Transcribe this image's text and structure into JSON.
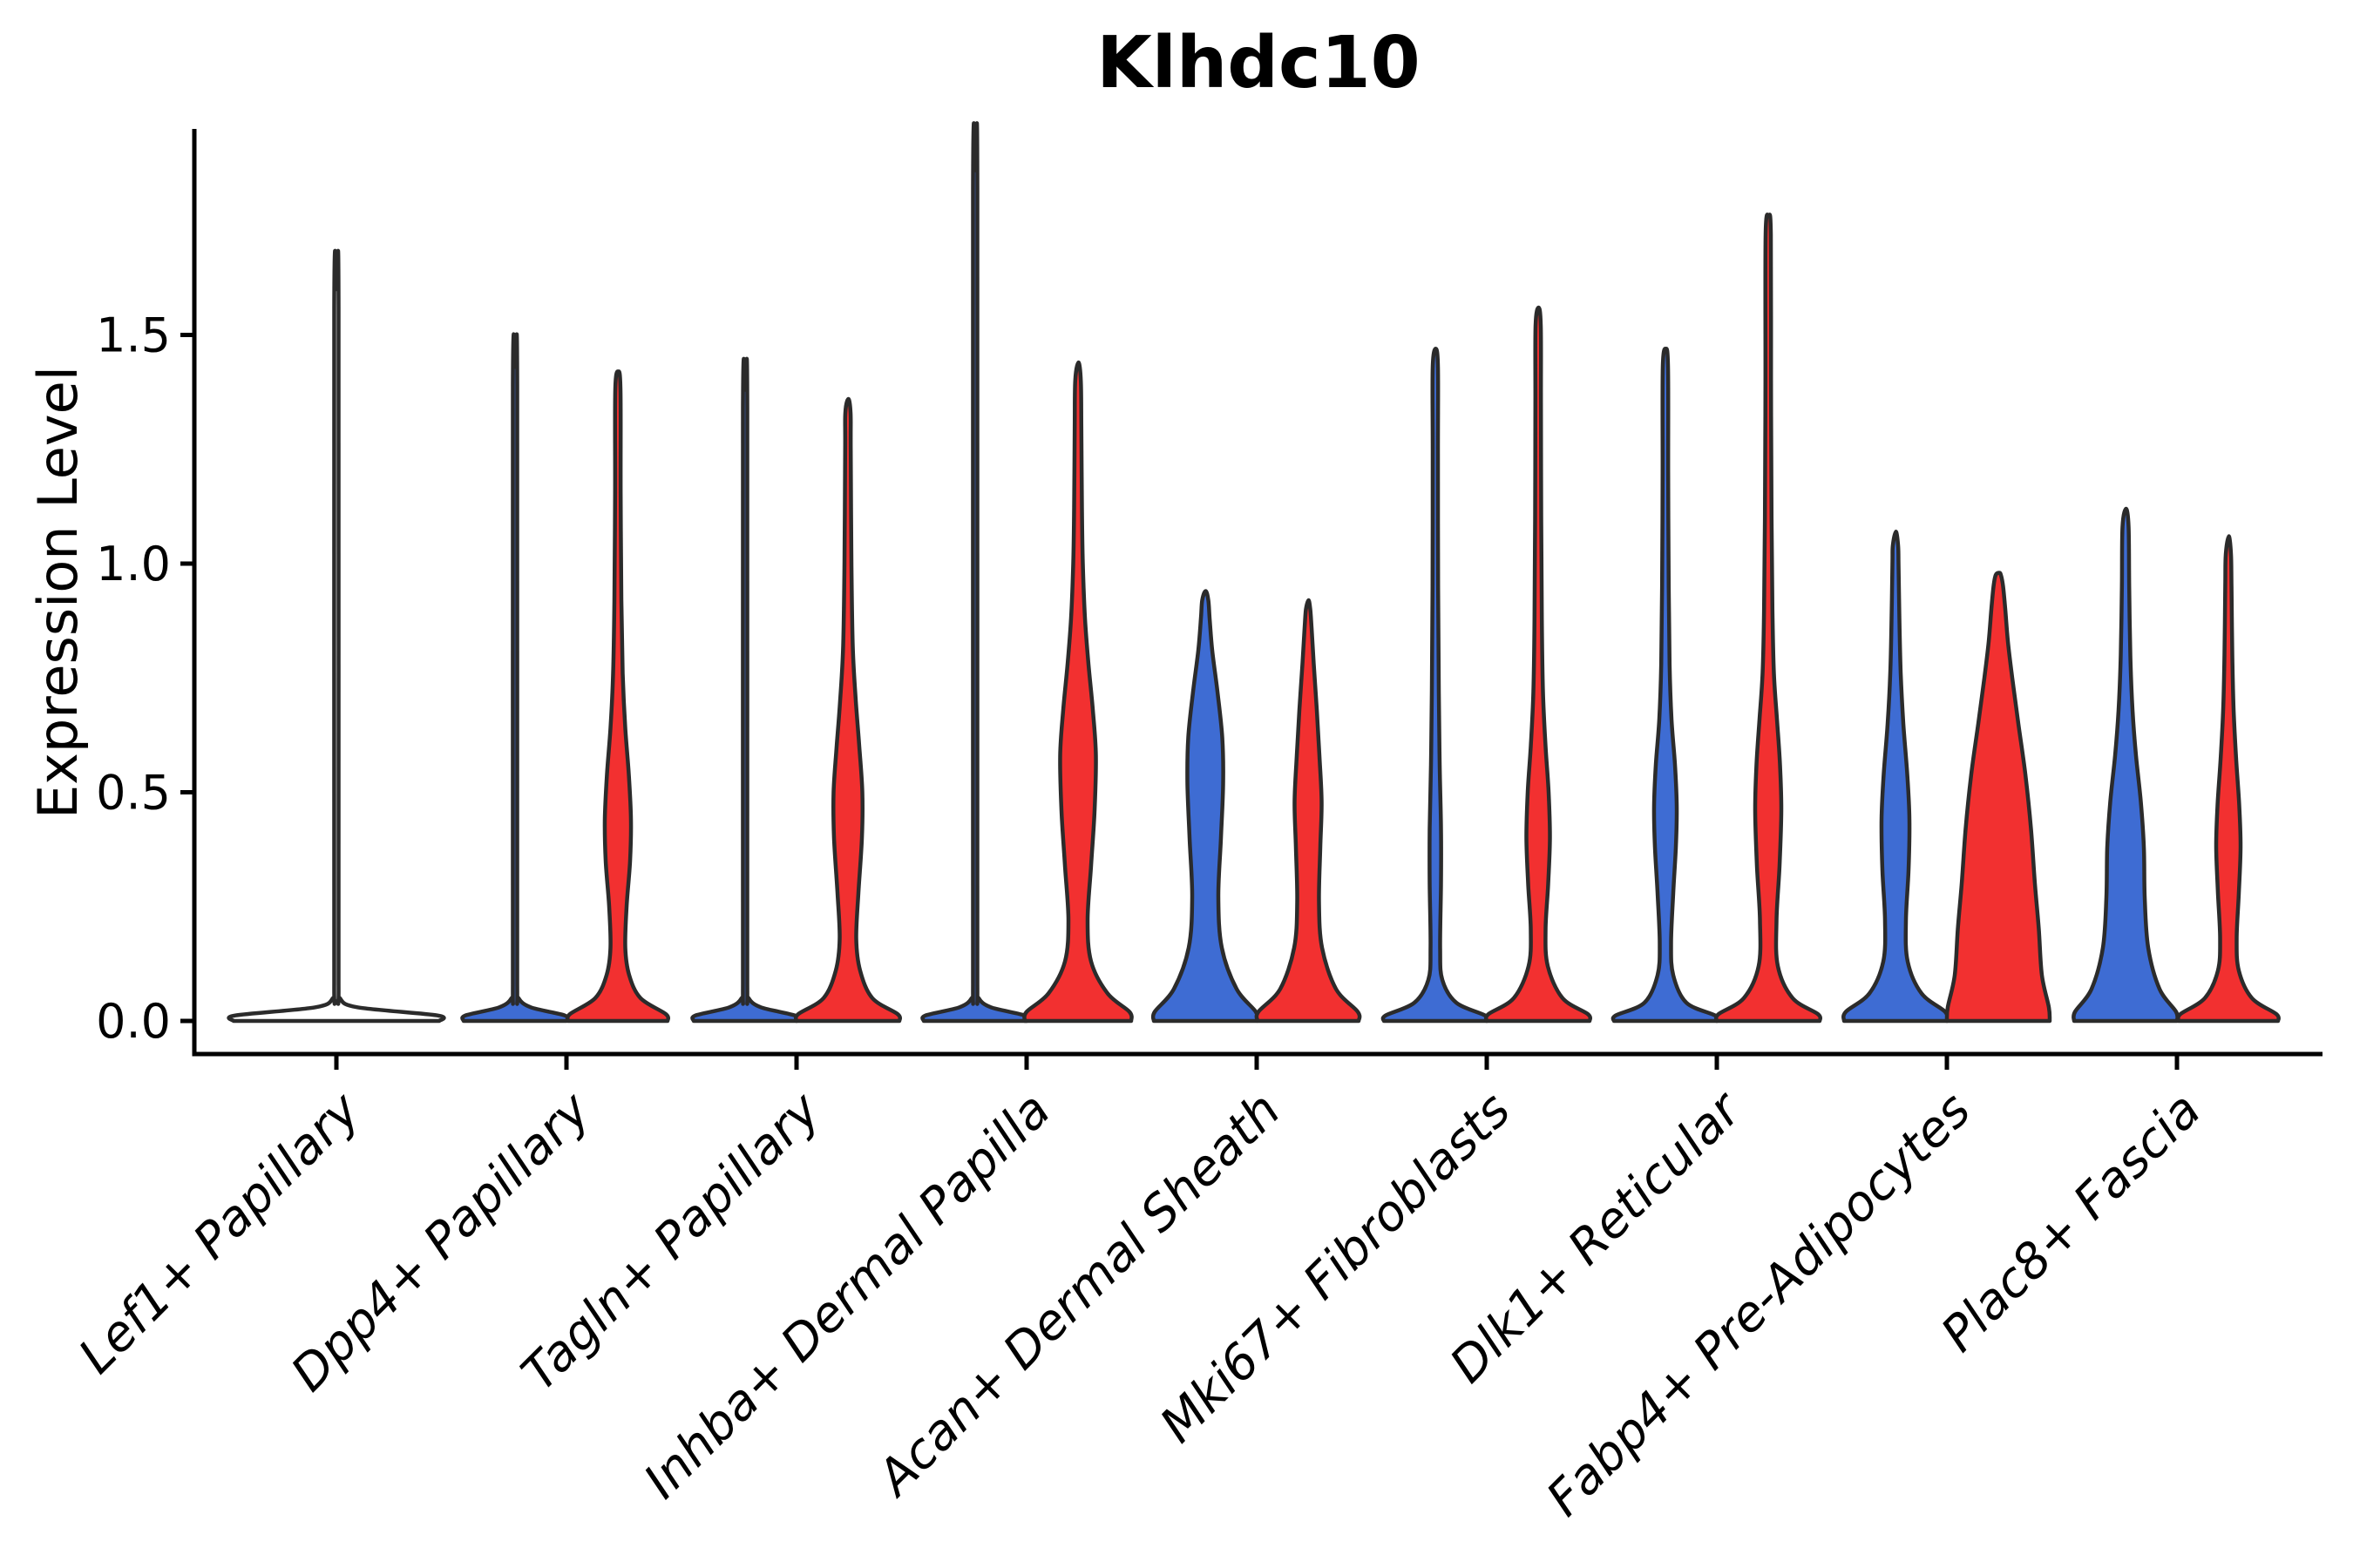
{
  "title": "Klhdc10",
  "ylabel": "Expression Level",
  "colors": {
    "blue": "#3e6cd3",
    "red": "#f23030",
    "outline": "#2b2b2b",
    "axis": "#000000",
    "background": "#ffffff"
  },
  "chart_data": {
    "type": "violin",
    "title": "Klhdc10",
    "xlabel": "",
    "ylabel": "Expression Level",
    "ylim": [
      -0.07,
      1.95
    ],
    "yticks": [
      "0.0",
      "0.5",
      "1.0",
      "1.5"
    ],
    "ytick_values": [
      0.0,
      0.5,
      1.0,
      1.5
    ],
    "grid": "off",
    "legend": "none",
    "split_series": [
      "condition-blue",
      "condition-red"
    ],
    "categories": [
      "Lef1+ Papillary",
      "Dpp4+ Papillary",
      "Tagln+ Papillary",
      "Inhba+ Dermal Papilla",
      "Acan+ Dermal Sheath",
      "Mki67+ Fibroblasts",
      "Dlk1+ Reticular",
      "Fabp4+ Pre-Adipocytes",
      "Plac8+ Fascia"
    ],
    "groups": [
      {
        "category": "Lef1+ Papillary",
        "violins": [
          {
            "split": "center",
            "color": "outline-only",
            "max": 1.6,
            "profile": [
              [
                0,
                118
              ],
              [
                0.012,
                116
              ],
              [
                0.03,
                24
              ],
              [
                0.05,
                4
              ],
              [
                0.08,
                2.5
              ],
              [
                1.56,
                2.5
              ],
              [
                1.6,
                0.5
              ]
            ]
          }
        ]
      },
      {
        "category": "Dpp4+ Papillary",
        "violins": [
          {
            "split": "left",
            "color": "blue",
            "max": 1.43,
            "profile": [
              [
                0,
                59
              ],
              [
                0.012,
                57
              ],
              [
                0.03,
                18
              ],
              [
                0.05,
                4
              ],
              [
                0.08,
                2.5
              ],
              [
                1.39,
                2.5
              ],
              [
                1.43,
                0.5
              ]
            ]
          },
          {
            "split": "right",
            "color": "red",
            "max": 1.42,
            "profile": [
              [
                0,
                57
              ],
              [
                0.015,
                55
              ],
              [
                0.05,
                26
              ],
              [
                0.1,
                13
              ],
              [
                0.16,
                8.5
              ],
              [
                0.25,
                10
              ],
              [
                0.35,
                14
              ],
              [
                0.44,
                15
              ],
              [
                0.54,
                12.5
              ],
              [
                0.64,
                8.5
              ],
              [
                0.76,
                5.5
              ],
              [
                0.92,
                4
              ],
              [
                1.15,
                3.2
              ],
              [
                1.38,
                3
              ],
              [
                1.42,
                0.5
              ]
            ]
          }
        ]
      },
      {
        "category": "Tagln+ Papillary",
        "violins": [
          {
            "split": "left",
            "color": "blue",
            "max": 1.38,
            "profile": [
              [
                0,
                59
              ],
              [
                0.012,
                57
              ],
              [
                0.03,
                18
              ],
              [
                0.05,
                4
              ],
              [
                0.08,
                2.5
              ],
              [
                1.34,
                2.5
              ],
              [
                1.38,
                0.5
              ]
            ]
          },
          {
            "split": "right",
            "color": "red",
            "max": 1.36,
            "profile": [
              [
                0,
                59
              ],
              [
                0.015,
                57
              ],
              [
                0.05,
                28
              ],
              [
                0.11,
                14
              ],
              [
                0.18,
                9.5
              ],
              [
                0.28,
                12
              ],
              [
                0.4,
                16
              ],
              [
                0.5,
                16.5
              ],
              [
                0.6,
                13
              ],
              [
                0.7,
                9
              ],
              [
                0.82,
                5.5
              ],
              [
                1.0,
                4
              ],
              [
                1.25,
                3.2
              ],
              [
                1.33,
                3
              ],
              [
                1.36,
                0.5
              ]
            ]
          }
        ]
      },
      {
        "category": "Inhba+ Dermal Papilla",
        "violins": [
          {
            "split": "left",
            "color": "blue",
            "max": 1.86,
            "profile": [
              [
                0,
                59
              ],
              [
                0.012,
                57
              ],
              [
                0.03,
                18
              ],
              [
                0.05,
                4
              ],
              [
                0.08,
                2.5
              ],
              [
                1.82,
                2.5
              ],
              [
                1.86,
                0.5
              ]
            ]
          },
          {
            "split": "right",
            "color": "red",
            "max": 1.44,
            "profile": [
              [
                0,
                61
              ],
              [
                0.02,
                59
              ],
              [
                0.06,
                34
              ],
              [
                0.13,
                15
              ],
              [
                0.22,
                11
              ],
              [
                0.34,
                15
              ],
              [
                0.46,
                19
              ],
              [
                0.58,
                20.5
              ],
              [
                0.68,
                17
              ],
              [
                0.78,
                12
              ],
              [
                0.88,
                8
              ],
              [
                1.0,
                5.5
              ],
              [
                1.12,
                4.5
              ],
              [
                1.3,
                3.8
              ],
              [
                1.4,
                3.2
              ],
              [
                1.44,
                0.5
              ]
            ]
          }
        ]
      },
      {
        "category": "Acan+ Dermal Sheath",
        "violins": [
          {
            "split": "left",
            "color": "blue",
            "max": 0.94,
            "profile": [
              [
                0,
                59
              ],
              [
                0.02,
                58
              ],
              [
                0.07,
                36
              ],
              [
                0.16,
                19
              ],
              [
                0.27,
                15
              ],
              [
                0.4,
                18
              ],
              [
                0.52,
                20.5
              ],
              [
                0.62,
                19.5
              ],
              [
                0.72,
                14
              ],
              [
                0.81,
                8
              ],
              [
                0.88,
                5
              ],
              [
                0.92,
                3.5
              ],
              [
                0.94,
                0.5
              ]
            ]
          },
          {
            "split": "right",
            "color": "red",
            "max": 0.92,
            "profile": [
              [
                0,
                58
              ],
              [
                0.02,
                57
              ],
              [
                0.07,
                32
              ],
              [
                0.16,
                16
              ],
              [
                0.26,
                12.5
              ],
              [
                0.38,
                14
              ],
              [
                0.48,
                15.5
              ],
              [
                0.58,
                13
              ],
              [
                0.68,
                10
              ],
              [
                0.78,
                6.5
              ],
              [
                0.86,
                4
              ],
              [
                0.9,
                2.5
              ],
              [
                0.92,
                0.5
              ]
            ]
          }
        ]
      },
      {
        "category": "Mki67+ Fibroblasts",
        "violins": [
          {
            "split": "left",
            "color": "blue",
            "max": 1.47,
            "profile": [
              [
                0,
                59
              ],
              [
                0.012,
                57
              ],
              [
                0.04,
                24
              ],
              [
                0.09,
                8
              ],
              [
                0.16,
                5.5
              ],
              [
                0.3,
                6.5
              ],
              [
                0.42,
                6.5
              ],
              [
                0.56,
                5
              ],
              [
                0.72,
                4
              ],
              [
                0.95,
                3.2
              ],
              [
                1.25,
                3
              ],
              [
                1.43,
                3
              ],
              [
                1.47,
                0.5
              ]
            ]
          },
          {
            "split": "right",
            "color": "red",
            "max": 1.56,
            "profile": [
              [
                0,
                59
              ],
              [
                0.015,
                57
              ],
              [
                0.05,
                28
              ],
              [
                0.12,
                11
              ],
              [
                0.2,
                8.5
              ],
              [
                0.3,
                11.5
              ],
              [
                0.4,
                13.5
              ],
              [
                0.5,
                12
              ],
              [
                0.6,
                8.5
              ],
              [
                0.72,
                5.5
              ],
              [
                0.88,
                4.2
              ],
              [
                1.1,
                3.5
              ],
              [
                1.35,
                3.2
              ],
              [
                1.52,
                3
              ],
              [
                1.56,
                0.5
              ]
            ]
          }
        ]
      },
      {
        "category": "Dlk1+ Reticular",
        "violins": [
          {
            "split": "left",
            "color": "blue",
            "max": 1.47,
            "profile": [
              [
                0,
                59
              ],
              [
                0.012,
                57
              ],
              [
                0.04,
                24
              ],
              [
                0.1,
                9
              ],
              [
                0.17,
                6.5
              ],
              [
                0.28,
                9
              ],
              [
                0.38,
                12
              ],
              [
                0.47,
                13
              ],
              [
                0.56,
                11
              ],
              [
                0.66,
                7
              ],
              [
                0.78,
                4.8
              ],
              [
                0.95,
                3.8
              ],
              [
                1.2,
                3.2
              ],
              [
                1.43,
                3
              ],
              [
                1.47,
                0.5
              ]
            ]
          },
          {
            "split": "right",
            "color": "red",
            "max": 1.76,
            "profile": [
              [
                0,
                59
              ],
              [
                0.015,
                57
              ],
              [
                0.05,
                28
              ],
              [
                0.12,
                11
              ],
              [
                0.22,
                9.5
              ],
              [
                0.34,
                13
              ],
              [
                0.46,
                15
              ],
              [
                0.56,
                13.5
              ],
              [
                0.66,
                10
              ],
              [
                0.76,
                6.5
              ],
              [
                0.9,
                4.8
              ],
              [
                1.1,
                3.8
              ],
              [
                1.4,
                3.2
              ],
              [
                1.72,
                3
              ],
              [
                1.76,
                0.5
              ]
            ]
          }
        ]
      },
      {
        "category": "Fabp4+ Pre-Adipocytes",
        "violins": [
          {
            "split": "left",
            "color": "blue",
            "max": 1.07,
            "profile": [
              [
                0,
                59
              ],
              [
                0.02,
                57
              ],
              [
                0.06,
                30
              ],
              [
                0.13,
                14
              ],
              [
                0.22,
                12
              ],
              [
                0.33,
                15
              ],
              [
                0.44,
                16
              ],
              [
                0.54,
                13.5
              ],
              [
                0.65,
                9
              ],
              [
                0.76,
                6
              ],
              [
                0.88,
                4.5
              ],
              [
                1.0,
                3.5
              ],
              [
                1.04,
                3
              ],
              [
                1.07,
                0.5
              ]
            ]
          },
          {
            "split": "right",
            "color": "red",
            "max": 0.98,
            "profile": [
              [
                0,
                59
              ],
              [
                0.03,
                58
              ],
              [
                0.1,
                50
              ],
              [
                0.2,
                46.5
              ],
              [
                0.3,
                42
              ],
              [
                0.42,
                37.5
              ],
              [
                0.54,
                31
              ],
              [
                0.65,
                23
              ],
              [
                0.75,
                16
              ],
              [
                0.83,
                11
              ],
              [
                0.9,
                8
              ],
              [
                0.95,
                5.5
              ],
              [
                0.975,
                3
              ],
              [
                0.98,
                1
              ]
            ]
          }
        ]
      },
      {
        "category": "Plac8+ Fascia",
        "violins": [
          {
            "split": "left",
            "color": "blue",
            "max": 1.12,
            "profile": [
              [
                0,
                59
              ],
              [
                0.02,
                58
              ],
              [
                0.07,
                39
              ],
              [
                0.16,
                26
              ],
              [
                0.27,
                22
              ],
              [
                0.38,
                21
              ],
              [
                0.48,
                17.5
              ],
              [
                0.58,
                12
              ],
              [
                0.68,
                8
              ],
              [
                0.8,
                5.5
              ],
              [
                0.95,
                4.2
              ],
              [
                1.08,
                3.5
              ],
              [
                1.12,
                0.5
              ]
            ]
          },
          {
            "split": "right",
            "color": "red",
            "max": 1.06,
            "profile": [
              [
                0,
                57
              ],
              [
                0.015,
                55
              ],
              [
                0.05,
                27
              ],
              [
                0.11,
                12
              ],
              [
                0.18,
                9.5
              ],
              [
                0.28,
                12
              ],
              [
                0.38,
                14
              ],
              [
                0.47,
                12.5
              ],
              [
                0.57,
                9
              ],
              [
                0.68,
                6
              ],
              [
                0.8,
                4.5
              ],
              [
                0.95,
                3.6
              ],
              [
                1.02,
                3
              ],
              [
                1.06,
                0.5
              ]
            ]
          }
        ]
      }
    ]
  }
}
